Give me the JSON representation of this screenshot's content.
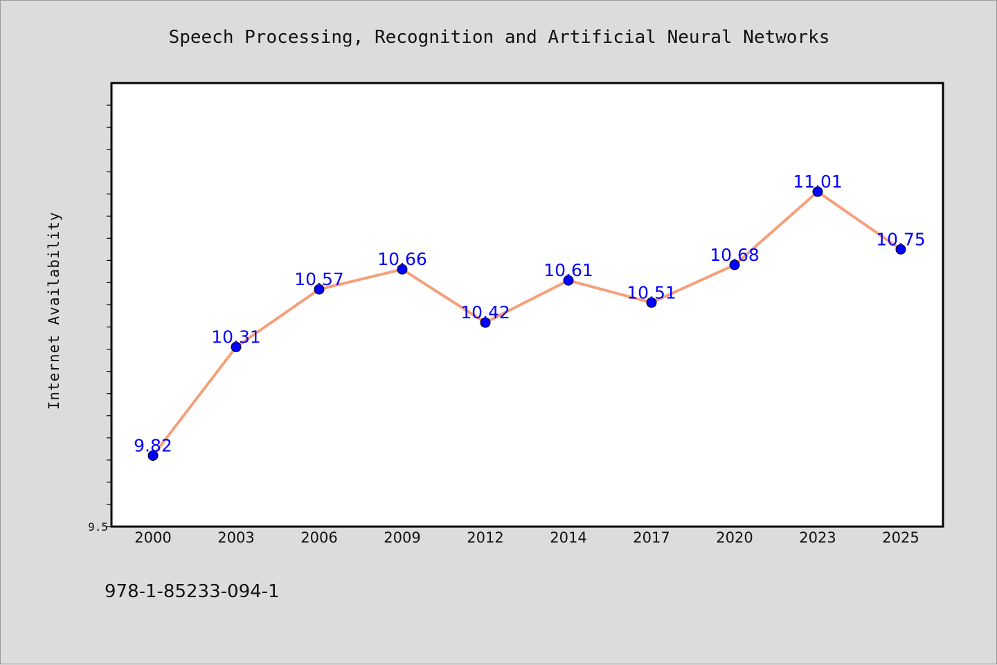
{
  "footer_text": "978-1-85233-094-1",
  "chart_data": {
    "type": "line",
    "title": "Speech Processing, Recognition and Artificial Neural Networks",
    "xlabel": "",
    "ylabel": "Internet Availability",
    "categories": [
      "2000",
      "2003",
      "2006",
      "2009",
      "2012",
      "2014",
      "2017",
      "2020",
      "2023",
      "2025"
    ],
    "series": [
      {
        "values": [
          9.82,
          10.31,
          10.57,
          10.66,
          10.42,
          10.61,
          10.51,
          10.68,
          11.01,
          10.75
        ],
        "line_color": "#f4a07a",
        "marker_color": "#0000ff"
      }
    ],
    "ylim": [
      9.5,
      11.5
    ],
    "ytick_labels": [
      {
        "value": 9.5,
        "label": "9.5"
      }
    ],
    "ytick_step": 0.1,
    "grid": false,
    "legend": "none",
    "data_labels": true
  }
}
